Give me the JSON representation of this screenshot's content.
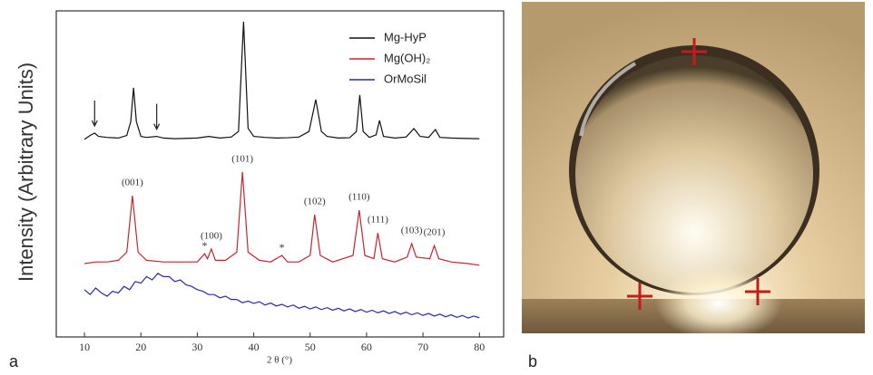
{
  "chart_data": {
    "type": "line",
    "y_label": "Intensity (Arbitrary Units)",
    "x_label": "2 θ (°)",
    "xlim": [
      5,
      84.3
    ],
    "xticks": [
      10,
      20,
      30,
      40,
      50,
      60,
      70,
      80
    ],
    "ylim": [
      0,
      100
    ],
    "legend": "upper right",
    "series": [
      {
        "name": "Mg-HyP",
        "color": "#111111",
        "x": [
          10,
          11,
          11.8,
          12.5,
          14,
          16,
          17.5,
          18.2,
          18.7,
          19.2,
          20,
          21,
          22.8,
          24,
          26,
          28,
          30,
          32,
          34,
          36,
          37.3,
          38.2,
          39,
          40,
          42,
          44,
          46,
          48,
          49.8,
          51,
          52,
          53,
          55,
          57,
          58.2,
          58.8,
          59.4,
          60.5,
          61.7,
          62.3,
          63,
          65,
          67,
          68.4,
          69.5,
          71,
          72.2,
          73,
          75,
          77,
          80
        ],
        "values": [
          60.6,
          61.8,
          62.5,
          61.5,
          61.2,
          61,
          61.8,
          66,
          76.4,
          66,
          61.5,
          61.2,
          61.5,
          61,
          60.8,
          60.9,
          61,
          61.5,
          61,
          61.3,
          63,
          96.7,
          64,
          61.5,
          61.2,
          61,
          61.1,
          61.3,
          63,
          72.8,
          63,
          61.5,
          61,
          61.1,
          63,
          74.2,
          63,
          61.2,
          62,
          66.4,
          61.5,
          61,
          61.3,
          63.9,
          61.5,
          61.2,
          63.6,
          61.2,
          61,
          60.9,
          60.8
        ]
      },
      {
        "name": "Mg(OH)₂",
        "color": "#c8252c",
        "x": [
          10,
          12,
          14,
          16,
          17.5,
          18.5,
          19.5,
          21,
          24,
          27,
          30,
          31.3,
          31.8,
          32.5,
          33.2,
          35,
          37,
          38,
          39,
          41,
          43,
          45,
          46,
          48,
          50,
          50.8,
          51.8,
          54,
          57.6,
          58.7,
          59.7,
          61.3,
          62,
          62.8,
          65,
          67.2,
          68,
          68.8,
          71.2,
          72,
          72.8,
          75,
          78,
          80
        ],
        "values": [
          22.5,
          23,
          23,
          23.5,
          26,
          43.3,
          26,
          23.5,
          23,
          23,
          23,
          25.5,
          24,
          27,
          23.5,
          23.5,
          26,
          50.6,
          26,
          23.5,
          23,
          25,
          23,
          23,
          25,
          37.5,
          25,
          23,
          25,
          38.9,
          25,
          24,
          31.9,
          24,
          23,
          24.5,
          28.6,
          24.5,
          24,
          28,
          24,
          23,
          22.5,
          22
        ]
      },
      {
        "name": "OrMoSil",
        "color": "#2a2aa8",
        "x": [
          10,
          11,
          12,
          13,
          14,
          15,
          16,
          17,
          18,
          19,
          20,
          21,
          22,
          23,
          24,
          25,
          26,
          27,
          28,
          29,
          30,
          31,
          32,
          33,
          34,
          35,
          36,
          37,
          38,
          39,
          40,
          41,
          42,
          43,
          44,
          45,
          46,
          47,
          48,
          49,
          50,
          51,
          52,
          53,
          54,
          55,
          56,
          57,
          58,
          59,
          60,
          61,
          62,
          63,
          64,
          65,
          66,
          67,
          68,
          69,
          70,
          71,
          72,
          73,
          74,
          75,
          76,
          77,
          78,
          79,
          80
        ],
        "values": [
          14.5,
          13,
          15,
          13.5,
          12.5,
          14,
          13.5,
          15.5,
          14.5,
          17,
          16.5,
          18.5,
          17.5,
          19.5,
          18.5,
          18.5,
          17,
          17.5,
          16,
          15.5,
          14.5,
          14,
          13,
          13,
          12,
          12.5,
          11.5,
          11.5,
          10.5,
          11,
          10.3,
          10.8,
          9.8,
          10.4,
          9.5,
          10,
          9.2,
          9.8,
          8.8,
          9.4,
          8.6,
          9.2,
          8.4,
          9,
          8.2,
          8.8,
          8,
          8.6,
          7.8,
          8.4,
          7.6,
          8.2,
          7.4,
          8,
          7.2,
          7.8,
          7,
          7.6,
          6.8,
          7.4,
          6.6,
          7.2,
          6.4,
          7,
          6.2,
          6.8,
          6,
          6.6,
          5.8,
          6.4,
          5.9
        ]
      }
    ],
    "annotations": [
      {
        "text": "(001)",
        "x": 18.5
      },
      {
        "text": "(100)",
        "x": 32.5
      },
      {
        "text": "(101)",
        "x": 38
      },
      {
        "text": "(102)",
        "x": 50.8
      },
      {
        "text": "(110)",
        "x": 58.7
      },
      {
        "text": "(111)",
        "x": 62
      },
      {
        "text": "(103)",
        "x": 68
      },
      {
        "text": "(201)",
        "x": 72
      },
      {
        "text": "*",
        "x": 31.3
      },
      {
        "text": "*",
        "x": 45
      }
    ],
    "arrows": [
      11.8,
      22.8
    ]
  },
  "panels": [
    "a",
    "b"
  ]
}
